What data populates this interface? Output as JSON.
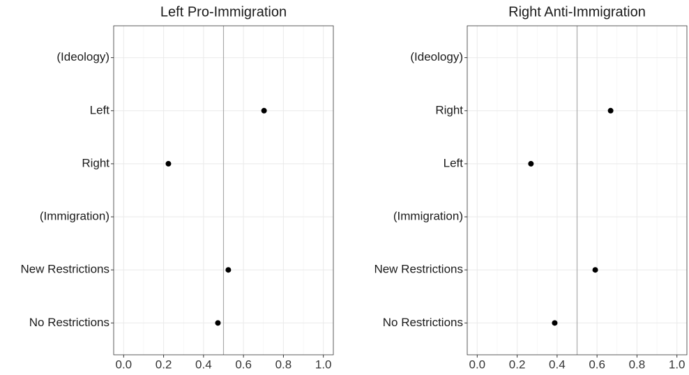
{
  "chart_data": [
    {
      "type": "dot",
      "title": "Left Pro-Immigration",
      "categories": [
        "(Ideology)",
        "Left",
        "Right",
        "(Immigration)",
        "New Restrictions",
        "No Restrictions"
      ],
      "values": [
        null,
        0.703,
        0.224,
        null,
        0.524,
        0.472
      ],
      "color": "#000000",
      "xlim": [
        -0.05,
        1.05
      ],
      "xticks": [
        {
          "value": 0,
          "label": "0.0"
        },
        0.2,
        0.4,
        0.6,
        0.8,
        {
          "value": 1,
          "label": "1.0"
        }
      ],
      "x_minor_ticks": [
        0.1,
        0.3,
        0.5,
        0.7,
        0.9
      ],
      "reference_line": 0.5,
      "grid": true
    },
    {
      "type": "dot",
      "title": "Right Anti-Immigration",
      "categories": [
        "(Ideology)",
        "Right",
        "Left",
        "(Immigration)",
        "New Restrictions",
        "No Restrictions"
      ],
      "values": [
        null,
        0.668,
        0.269,
        null,
        0.591,
        0.388
      ],
      "color": "#000000",
      "xlim": [
        -0.05,
        1.05
      ],
      "xticks": [
        {
          "value": 0,
          "label": "0.0"
        },
        0.2,
        0.4,
        0.6,
        0.8,
        {
          "value": 1,
          "label": "1.0"
        }
      ],
      "x_minor_ticks": [
        0.1,
        0.3,
        0.5,
        0.7,
        0.9
      ],
      "reference_line": 0.5,
      "grid": true
    }
  ]
}
